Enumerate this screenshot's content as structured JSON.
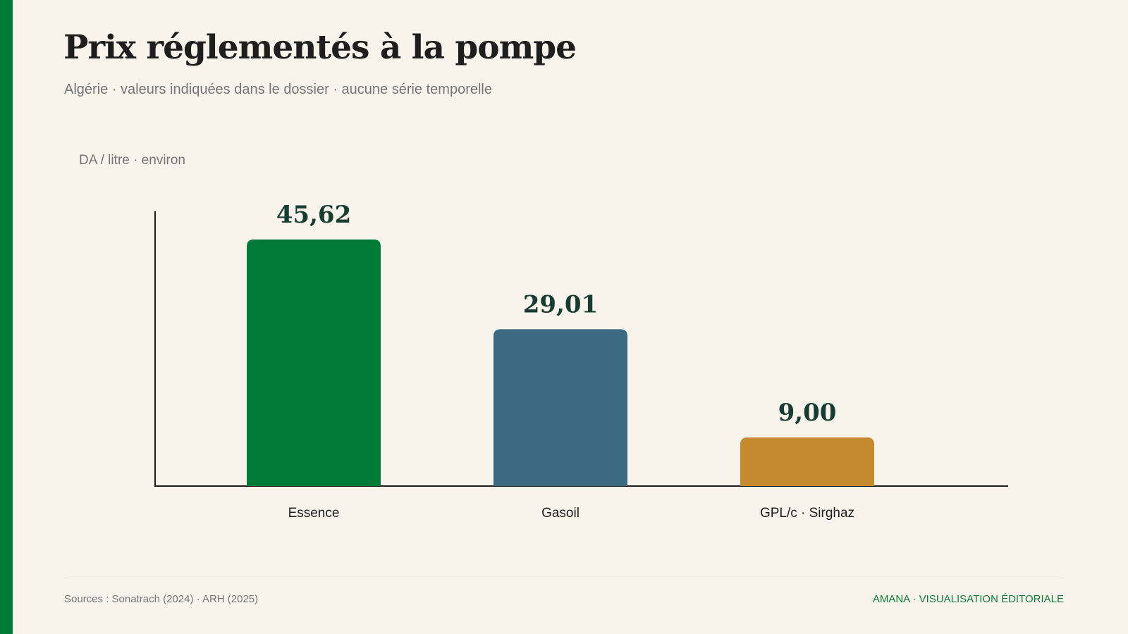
{
  "header": {
    "title": "Prix réglementés à la pompe",
    "subtitle": "Algérie · valeurs indiquées dans le dossier · aucune série temporelle"
  },
  "chart_data": {
    "type": "bar",
    "unit_label": "DA / litre · environ",
    "categories": [
      "Essence",
      "Gasoil",
      "GPL/c · Sirghaz"
    ],
    "values": [
      45.62,
      29.01,
      9.0
    ],
    "value_labels": [
      "45,62",
      "29,01",
      "9,00"
    ],
    "colors": [
      "#007b37",
      "#3b6a82",
      "#c68a2e"
    ],
    "xlabel": "",
    "ylabel": "",
    "grid": false,
    "legend": "none"
  },
  "footer": {
    "sources": "Sources : Sonatrach (2024) · ARH (2025)",
    "brand": "AMANA · VISUALISATION ÉDITORIALE"
  },
  "theme": {
    "accent": "#007b37",
    "background": "#f8f4ec"
  }
}
